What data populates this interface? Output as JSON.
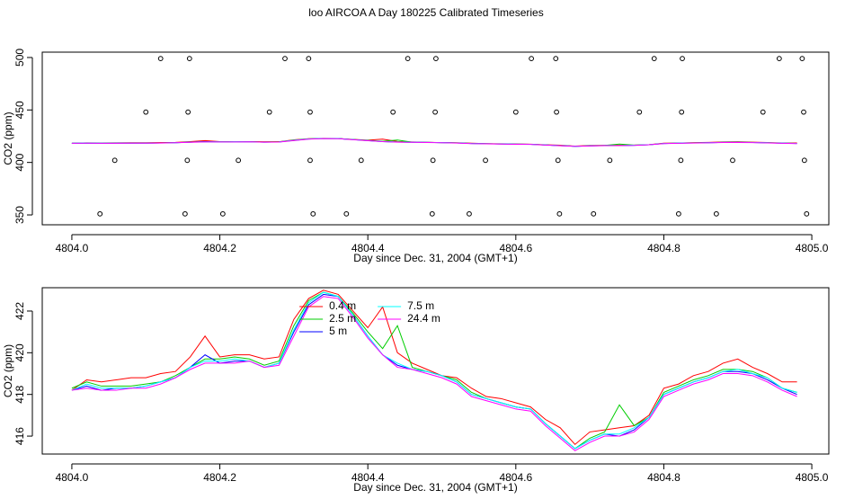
{
  "chart_data": [
    {
      "type": "scatter",
      "title": "loo AIRCOA A  Day 180225  Calibrated Timeseries",
      "x_label": "Day since Dec. 31, 2004 (GMT+1)",
      "y_label": "CO2 (ppm)",
      "xlim": [
        4803.96,
        4805.023
      ],
      "xticks": [
        {
          "value": 4804,
          "label": "4804.0"
        },
        {
          "value": 4804.2,
          "label": "4804.2"
        },
        {
          "value": 4804.4,
          "label": "4804.4"
        },
        {
          "value": 4804.6,
          "label": "4804.6"
        },
        {
          "value": 4804.8,
          "label": "4804.8"
        },
        {
          "value": 4805,
          "label": "4805.0"
        }
      ],
      "ylim": [
        340.6,
        505.1
      ],
      "yticks": [
        350,
        400,
        450,
        500
      ],
      "series": [
        {
          "color": "#000000",
          "x": [
            4804.038,
            4804.153,
            4804.204,
            4804.326,
            4804.371,
            4804.487,
            4804.537,
            4804.659,
            4804.705,
            4804.82,
            4804.871,
            4804.993,
            4804.058,
            4804.156,
            4804.225,
            4804.322,
            4804.391,
            4804.488,
            4804.559,
            4804.657,
            4804.727,
            4804.823,
            4804.893,
            4804.99,
            4804.1,
            4804.157,
            4804.267,
            4804.322,
            4804.434,
            4804.491,
            4804.6,
            4804.655,
            4804.767,
            4804.824,
            4804.934,
            4804.989,
            4804.12,
            4804.159,
            4804.288,
            4804.32,
            4804.454,
            4804.492,
            4804.621,
            4804.654,
            4804.787,
            4804.825,
            4804.956,
            4804.987
          ],
          "values": [
            351,
            351,
            351,
            351,
            351,
            351,
            351,
            351,
            351,
            351,
            351,
            351,
            402,
            402,
            402,
            402,
            402,
            402,
            402,
            402,
            402,
            402,
            402,
            402,
            448,
            448,
            448,
            448,
            448,
            448,
            448,
            448,
            448,
            448,
            448,
            448,
            499,
            499,
            499,
            499,
            499,
            499,
            499,
            499,
            499,
            499,
            499,
            499
          ]
        }
      ]
    },
    {
      "type": "line",
      "x_label": "Day since Dec. 31, 2004 (GMT+1)",
      "y_label": "CO2 (ppm)",
      "xlim": [
        4803.96,
        4805.023
      ],
      "xticks": [
        {
          "value": 4804,
          "label": "4804.0"
        },
        {
          "value": 4804.2,
          "label": "4804.2"
        },
        {
          "value": 4804.4,
          "label": "4804.4"
        },
        {
          "value": 4804.6,
          "label": "4804.6"
        },
        {
          "value": 4804.8,
          "label": "4804.8"
        },
        {
          "value": 4805,
          "label": "4805.0"
        }
      ],
      "ylim": [
        415.14,
        423.12
      ],
      "yticks": [
        416,
        418,
        420,
        422
      ],
      "legend": "top",
      "x": [
        4804,
        4804.02,
        4804.04,
        4804.06,
        4804.08,
        4804.1,
        4804.12,
        4804.14,
        4804.16,
        4804.18,
        4804.2,
        4804.22,
        4804.24,
        4804.26,
        4804.28,
        4804.3,
        4804.32,
        4804.34,
        4804.36,
        4804.38,
        4804.4,
        4804.42,
        4804.44,
        4804.46,
        4804.48,
        4804.5,
        4804.52,
        4804.54,
        4804.56,
        4804.58,
        4804.6,
        4804.62,
        4804.64,
        4804.66,
        4804.68,
        4804.7,
        4804.72,
        4804.74,
        4804.76,
        4804.78,
        4804.8,
        4804.82,
        4804.84,
        4804.86,
        4804.88,
        4804.9,
        4804.92,
        4804.94,
        4804.96,
        4804.98
      ],
      "series": [
        {
          "name": "0.4 m",
          "color": "#ff0000",
          "values": [
            418.2,
            418.7,
            418.6,
            418.7,
            418.8,
            418.8,
            419.0,
            419.1,
            419.8,
            420.8,
            419.8,
            419.9,
            419.9,
            419.7,
            419.8,
            421.6,
            422.6,
            423.0,
            422.8,
            422.0,
            421.2,
            422.2,
            420.0,
            419.5,
            419.2,
            418.9,
            418.8,
            418.3,
            417.9,
            417.8,
            417.6,
            417.4,
            416.8,
            416.4,
            415.6,
            416.2,
            416.3,
            416.4,
            416.5,
            417.0,
            418.3,
            418.5,
            418.9,
            419.1,
            419.5,
            419.7,
            419.3,
            419.0,
            418.6,
            418.6
          ]
        },
        {
          "name": "2.5 m",
          "color": "#00cd00",
          "values": [
            418.3,
            418.6,
            418.4,
            418.4,
            418.4,
            418.5,
            418.6,
            418.9,
            419.3,
            419.7,
            419.7,
            419.8,
            419.7,
            419.4,
            419.6,
            421.3,
            422.5,
            422.9,
            422.7,
            421.9,
            421.0,
            420.2,
            421.3,
            419.3,
            419.1,
            418.9,
            418.7,
            418.1,
            417.8,
            417.6,
            417.4,
            417.3,
            416.6,
            416.0,
            415.4,
            415.9,
            416.2,
            417.5,
            416.5,
            416.9,
            418.1,
            418.4,
            418.7,
            418.9,
            419.2,
            419.2,
            419.1,
            418.8,
            418.3,
            418.1
          ]
        },
        {
          "name": "5 m",
          "color": "#0000ff",
          "values": [
            418.2,
            418.4,
            418.2,
            418.3,
            418.3,
            418.4,
            418.6,
            418.8,
            419.3,
            419.9,
            419.5,
            419.6,
            419.6,
            419.3,
            419.5,
            421.0,
            422.3,
            422.8,
            422.7,
            421.8,
            420.8,
            419.9,
            419.4,
            419.2,
            419.1,
            418.9,
            418.6,
            418.0,
            417.8,
            417.6,
            417.4,
            417.3,
            416.6,
            416.0,
            415.4,
            415.8,
            416.1,
            416.0,
            416.3,
            416.9,
            418.0,
            418.3,
            418.6,
            418.8,
            419.1,
            419.1,
            419.0,
            418.7,
            418.3,
            418.0
          ]
        },
        {
          "name": "7.5 m",
          "color": "#00ffff",
          "values": [
            418.2,
            418.5,
            418.3,
            418.3,
            418.3,
            418.4,
            418.6,
            418.8,
            419.3,
            419.6,
            419.6,
            419.7,
            419.6,
            419.3,
            419.5,
            421.1,
            422.4,
            422.9,
            422.7,
            421.8,
            420.8,
            419.9,
            419.5,
            419.2,
            419.1,
            418.9,
            418.6,
            418.0,
            417.8,
            417.6,
            417.4,
            417.3,
            416.6,
            416.0,
            415.4,
            415.8,
            416.1,
            416.1,
            416.4,
            416.9,
            418.0,
            418.3,
            418.6,
            418.8,
            419.1,
            419.2,
            419.0,
            418.8,
            418.3,
            418.1
          ]
        },
        {
          "name": "24.4 m",
          "color": "#ff00ff",
          "values": [
            418.2,
            418.3,
            418.2,
            418.2,
            418.3,
            418.3,
            418.5,
            418.8,
            419.2,
            419.5,
            419.5,
            419.5,
            419.6,
            419.3,
            419.4,
            420.8,
            422.2,
            422.7,
            422.6,
            421.7,
            420.7,
            419.9,
            419.3,
            419.2,
            419.0,
            418.8,
            418.5,
            417.9,
            417.7,
            417.5,
            417.3,
            417.2,
            416.5,
            415.9,
            415.3,
            415.7,
            416.0,
            416.0,
            416.2,
            416.8,
            417.9,
            418.2,
            418.5,
            418.7,
            419.0,
            419.0,
            418.9,
            418.6,
            418.2,
            417.9
          ]
        }
      ]
    }
  ]
}
